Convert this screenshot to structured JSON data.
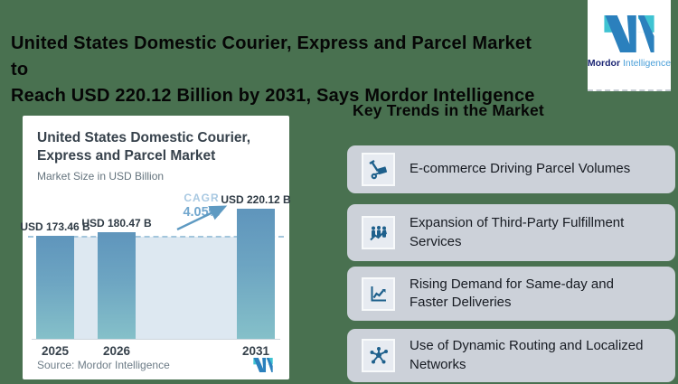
{
  "page": {
    "background_color": "#497150",
    "title_line1": "United States Domestic Courier, Express and Parcel Market to",
    "title_line2": "Reach USD 220.12 Billion by 2031, Says Mordor Intelligence"
  },
  "logo": {
    "word_bold": "Mordor",
    "word_light": "Intelligence",
    "teal": "#3fc3d2",
    "blue": "#2b80bd",
    "navy_text_color": "#1c2674",
    "light_text_color": "#4a9fd8"
  },
  "chart_card": {
    "title": "United States Domestic Courier, Express and Parcel Market",
    "subtitle": "Market Size in USD Billion",
    "source": "Source: Mordor Intelligence"
  },
  "chart_data": {
    "type": "bar",
    "title": "United States Domestic Courier, Express and Parcel Market",
    "ylabel": "Market Size in USD Billion",
    "categories": [
      "2025",
      "2026",
      "2031"
    ],
    "values": [
      173.46,
      180.47,
      220.12
    ],
    "value_labels": [
      "USD 173.46 B",
      "USD 180.47 B",
      "USD 220.12 B"
    ],
    "annotations": {
      "cagr_label": "CAGR",
      "cagr_value": "4.05%"
    },
    "reference_line_value": 173.46,
    "baseline_value": 0,
    "grid": "off",
    "bar_color_top": "#5f95bc",
    "bar_color_bottom": "#85c0c9",
    "reference_band_color": "#dde8f1",
    "source": "Source: Mordor Intelligence"
  },
  "trends": {
    "heading": "Key Trends in the Market",
    "card_color": "#ccd1d9",
    "icon_color": "#1e608c",
    "items": [
      {
        "icon": "hand-truck-icon",
        "label": "E-commerce Driving Parcel Volumes"
      },
      {
        "icon": "people-growth-icon",
        "label": "Expansion of Third-Party Fulfillment Services"
      },
      {
        "icon": "line-chart-icon",
        "label": "Rising Demand for Same-day and Faster Deliveries"
      },
      {
        "icon": "network-icon",
        "label": "Use of Dynamic Routing and Localized Networks"
      }
    ]
  }
}
